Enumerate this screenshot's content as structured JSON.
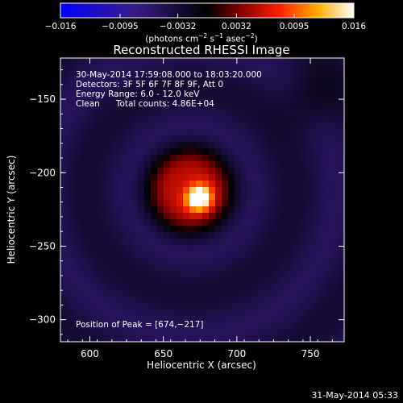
{
  "chart_data": {
    "type": "heatmap",
    "title": "Reconstructed RHESSI Image",
    "xlabel": "Heliocentric X (arcsec)",
    "ylabel": "Heliocentric Y (arcsec)",
    "xlim": [
      580,
      773
    ],
    "ylim": [
      -315,
      -122
    ],
    "xticks": [
      600,
      650,
      700,
      750
    ],
    "yticks": [
      -150,
      -200,
      -250,
      -300
    ],
    "xtick_labels": [
      "600",
      "650",
      "700",
      "750"
    ],
    "ytick_labels": [
      "−150",
      "−200",
      "−250",
      "−300"
    ],
    "colorbar": {
      "range": [
        -0.016,
        0.016
      ],
      "ticks": [
        -0.016,
        -0.0095,
        -0.0032,
        0.0032,
        0.0095,
        0.016
      ],
      "tick_labels": [
        "−0.016",
        "−0.0095",
        "−0.0032",
        "0.0032",
        "0.0095",
        "0.016"
      ],
      "units_main": "(photons cm",
      "units_exp1": "−2",
      "units_mid": " s",
      "units_exp2": "−1",
      "units_mid2": " asec",
      "units_exp3": "−2",
      "units_end": ")",
      "colormap": "hot-blue"
    },
    "peak": {
      "x": 674,
      "y": -217
    },
    "source_model": {
      "core_center": [
        674,
        -217
      ],
      "core_sigma": 6,
      "core_amplitude": 0.016,
      "ring_center": [
        668,
        -212
      ],
      "ring_radius": 30,
      "ring_amplitude": 0.0085,
      "background": -0.004
    },
    "annotations": [
      "30-May-2014 17:59:08.000 to 18:03:20.000",
      "Detectors: 3F 5F 6F 7F 8F 9F, Att 0",
      "Energy Range: 6.0 - 12.0 keV",
      "Clean      Total counts: 4.86E+04"
    ],
    "peak_label": "Position of Peak = [674,−217]"
  },
  "footer": {
    "timestamp": "31-May-2014 05:33"
  }
}
